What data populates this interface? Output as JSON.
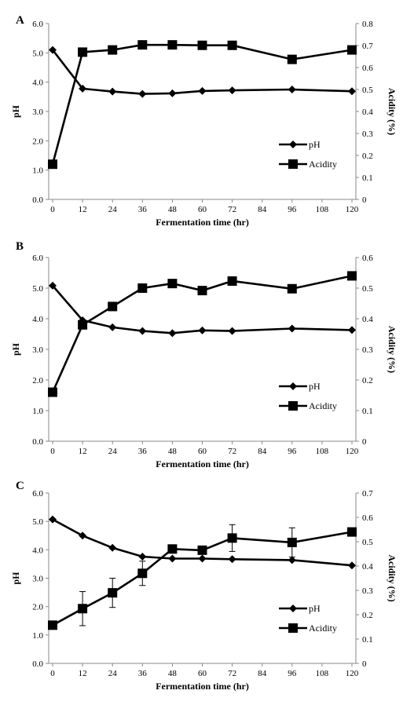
{
  "chart_data": [
    {
      "panel_label": "A",
      "type": "line",
      "x": [
        0,
        12,
        24,
        36,
        48,
        60,
        72,
        96,
        120
      ],
      "xlabel": "Fermentation time (hr)",
      "xticks": [
        "0",
        "12",
        "24",
        "36",
        "48",
        "60",
        "72",
        "84",
        "96",
        "108",
        "120"
      ],
      "xlim": [
        0,
        120
      ],
      "ylabel_left": "pH",
      "ylim_left": [
        0,
        6
      ],
      "yticks_left": [
        "0.0",
        "1.0",
        "2.0",
        "3.0",
        "4.0",
        "5.0",
        "6.0"
      ],
      "ylabel_right": "Acidity (%)",
      "ylim_right": [
        0,
        0.8
      ],
      "yticks_right": [
        "0",
        "0.1",
        "0.2",
        "0.3",
        "0.4",
        "0.5",
        "0.6",
        "0.7",
        "0.8"
      ],
      "legend_position": "lower-right",
      "grid": false,
      "series": [
        {
          "name": "pH",
          "axis": "left",
          "marker": "diamond",
          "values": [
            5.1,
            3.78,
            3.68,
            3.6,
            3.62,
            3.7,
            3.72,
            3.75,
            3.69
          ]
        },
        {
          "name": "Acidity",
          "axis": "right",
          "marker": "square",
          "values": [
            0.16,
            0.67,
            0.68,
            0.703,
            0.703,
            0.701,
            0.701,
            0.637,
            0.68
          ]
        }
      ]
    },
    {
      "panel_label": "B",
      "type": "line",
      "x": [
        0,
        12,
        24,
        36,
        48,
        60,
        72,
        96,
        120
      ],
      "xlabel": "Fermentation time (hr)",
      "xticks": [
        "0",
        "12",
        "24",
        "36",
        "48",
        "60",
        "72",
        "84",
        "96",
        "108",
        "120"
      ],
      "xlim": [
        0,
        120
      ],
      "ylabel_left": "pH",
      "ylim_left": [
        0,
        6
      ],
      "yticks_left": [
        "0.0",
        "1.0",
        "2.0",
        "3.0",
        "4.0",
        "5.0",
        "6.0"
      ],
      "ylabel_right": "Acidity (%)",
      "ylim_right": [
        0,
        0.6
      ],
      "yticks_right": [
        "0",
        "0.1",
        "0.2",
        "0.3",
        "0.4",
        "0.5",
        "0.6"
      ],
      "legend_position": "lower-right",
      "grid": false,
      "series": [
        {
          "name": "pH",
          "axis": "left",
          "marker": "diamond",
          "values": [
            5.08,
            3.95,
            3.72,
            3.6,
            3.53,
            3.62,
            3.6,
            3.68,
            3.63
          ]
        },
        {
          "name": "Acidity",
          "axis": "right",
          "marker": "square",
          "values": [
            0.16,
            0.38,
            0.44,
            0.5,
            0.515,
            0.492,
            0.523,
            0.498,
            0.54
          ]
        }
      ]
    },
    {
      "panel_label": "C",
      "type": "line",
      "x": [
        0,
        12,
        24,
        36,
        48,
        60,
        72,
        96,
        120
      ],
      "xlabel": "Fermentation time (hr)",
      "xticks": [
        "0",
        "12",
        "24",
        "36",
        "48",
        "60",
        "72",
        "84",
        "96",
        "108",
        "120"
      ],
      "xlim": [
        0,
        120
      ],
      "ylabel_left": "pH",
      "ylim_left": [
        0,
        6
      ],
      "yticks_left": [
        "0.0",
        "1.0",
        "2.0",
        "3.0",
        "4.0",
        "5.0",
        "6.0"
      ],
      "ylabel_right": "Acidity (%)",
      "ylim_right": [
        0,
        0.7
      ],
      "yticks_right": [
        "0",
        "0.1",
        "0.2",
        "0.3",
        "0.4",
        "0.5",
        "0.6",
        "0.7"
      ],
      "legend_position": "lower-right",
      "grid": false,
      "series": [
        {
          "name": "pH",
          "axis": "left",
          "marker": "diamond",
          "values": [
            5.07,
            4.5,
            4.07,
            3.76,
            3.69,
            3.69,
            3.67,
            3.64,
            3.45
          ]
        },
        {
          "name": "Acidity",
          "axis": "right",
          "marker": "square",
          "values": [
            0.157,
            0.225,
            0.29,
            0.37,
            0.47,
            0.465,
            0.515,
            0.497,
            0.54
          ],
          "error": [
            0,
            0.07,
            0.06,
            0.05,
            0.0,
            0.0,
            0.055,
            0.06,
            0.0
          ]
        }
      ]
    }
  ]
}
